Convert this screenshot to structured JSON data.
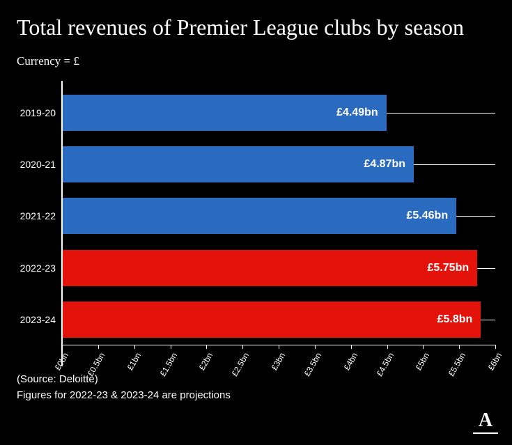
{
  "chart": {
    "type": "bar",
    "orientation": "horizontal",
    "title": "Total revenues of Premier League clubs by season",
    "subtitle": "Currency = £",
    "background_color": "#000000",
    "text_color": "#ffffff",
    "title_fontsize": 32,
    "subtitle_fontsize": 17,
    "value_label_fontsize": 16,
    "axis_label_fontsize": 14,
    "tick_fontsize": 12,
    "xlim": [
      0,
      6
    ],
    "xtick_step": 0.5,
    "xtick_prefix": "£",
    "xtick_suffix": "bn",
    "bar_colors": {
      "actual": "#2b6bbf",
      "projection": "#e3120b"
    },
    "categories": [
      "2019-20",
      "2020-21",
      "2021-22",
      "2022-23",
      "2023-24"
    ],
    "values": [
      4.49,
      4.87,
      5.46,
      5.75,
      5.8
    ],
    "value_labels": [
      "£4.49bn",
      "£4.87bn",
      "£5.46bn",
      "£5.75bn",
      "£5.8bn"
    ],
    "series_type": [
      "actual",
      "actual",
      "actual",
      "projection",
      "projection"
    ]
  },
  "footer": {
    "source": "(Source: Deloitte)",
    "note": "Figures for 2022-23 & 2023-24 are projections"
  },
  "logo_text": "A"
}
